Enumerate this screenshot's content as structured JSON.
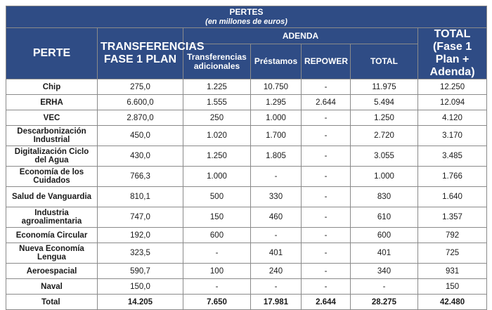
{
  "title": "PERTES",
  "subtitle": "(en millones de euros)",
  "headers": {
    "perte": "PERTE",
    "transferencias_fase1": "TRANSFERENCIAS FASE 1 PLAN",
    "adenda": "ADENDA",
    "total_fase": "TOTAL (Fase 1 Plan + Adenda)",
    "sub": [
      "Transferencias adicionales",
      "Préstamos",
      "REPOWER",
      "TOTAL"
    ]
  },
  "rows": [
    {
      "name": "Chip",
      "fase1": "275,0",
      "transf": "1.225",
      "prest": "10.750",
      "repower": "-",
      "total_adenda": "11.975",
      "total": "12.250"
    },
    {
      "name": "ERHA",
      "fase1": "6.600,0",
      "transf": "1.555",
      "prest": "1.295",
      "repower": "2.644",
      "total_adenda": "5.494",
      "total": "12.094"
    },
    {
      "name": "VEC",
      "fase1": "2.870,0",
      "transf": "250",
      "prest": "1.000",
      "repower": "-",
      "total_adenda": "1.250",
      "total": "4.120"
    },
    {
      "name": "Descarbonización Industrial",
      "fase1": "450,0",
      "transf": "1.020",
      "prest": "1.700",
      "repower": "-",
      "total_adenda": "2.720",
      "total": "3.170"
    },
    {
      "name": "Digitalización Ciclo del Agua",
      "fase1": "430,0",
      "transf": "1.250",
      "prest": "1.805",
      "repower": "-",
      "total_adenda": "3.055",
      "total": "3.485"
    },
    {
      "name": "Economía de los Cuidados",
      "fase1": "766,3",
      "transf": "1.000",
      "prest": "-",
      "repower": "-",
      "total_adenda": "1.000",
      "total": "1.766"
    },
    {
      "name": "Salud de Vanguardia",
      "fase1": "810,1",
      "transf": "500",
      "prest": "330",
      "repower": "-",
      "total_adenda": "830",
      "total": "1.640"
    },
    {
      "name": "Industria agroalimentaria",
      "fase1": "747,0",
      "transf": "150",
      "prest": "460",
      "repower": "-",
      "total_adenda": "610",
      "total": "1.357"
    },
    {
      "name": "Economía Circular",
      "fase1": "192,0",
      "transf": "600",
      "prest": "-",
      "repower": "-",
      "total_adenda": "600",
      "total": "792"
    },
    {
      "name": "Nueva Economía Lengua",
      "fase1": "323,5",
      "transf": "-",
      "prest": "401",
      "repower": "-",
      "total_adenda": "401",
      "total": "725"
    },
    {
      "name": "Aeroespacial",
      "fase1": "590,7",
      "transf": "100",
      "prest": "240",
      "repower": "-",
      "total_adenda": "340",
      "total": "931"
    },
    {
      "name": "Naval",
      "fase1": "150,0",
      "transf": "-",
      "prest": "-",
      "repower": "-",
      "total_adenda": "-",
      "total": "150"
    }
  ],
  "total_row": {
    "name": "Total",
    "fase1": "14.205",
    "transf": "7.650",
    "prest": "17.981",
    "repower": "2.644",
    "total_adenda": "28.275",
    "total": "42.480"
  },
  "colors": {
    "header_bg": "#2f4c85",
    "border": "#8a8a8a"
  }
}
